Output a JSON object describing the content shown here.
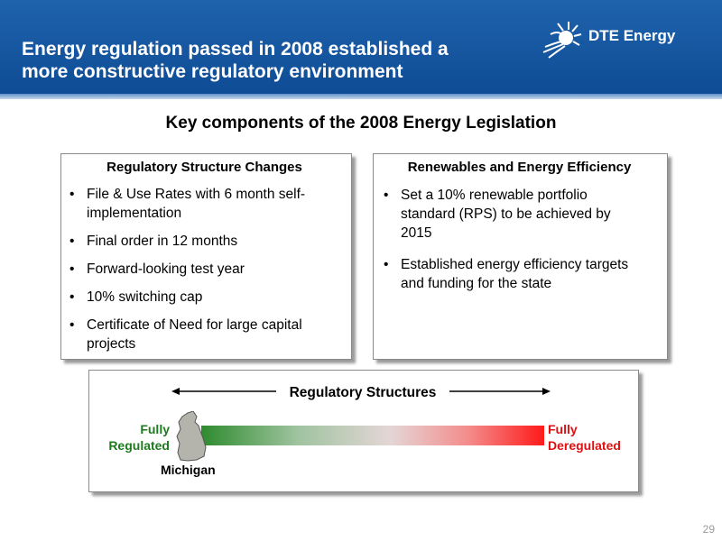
{
  "header": {
    "title_line1": "Energy regulation passed in 2008 established a",
    "title_line2": "more constructive regulatory environment",
    "logo_text": "DTE Energy"
  },
  "subtitle": "Key components of the 2008 Energy Legislation",
  "left_box": {
    "heading": "Regulatory Structure Changes",
    "items": [
      {
        "line1": "File & Use Rates with 6 month self-",
        "line2": "implementation"
      },
      {
        "line1": "Final order in 12 months",
        "line2": ""
      },
      {
        "line1": "Forward-looking test year",
        "line2": ""
      },
      {
        "line1": "10% switching cap",
        "line2": ""
      },
      {
        "line1": "Certificate of Need for large capital",
        "line2": "projects"
      }
    ]
  },
  "right_box": {
    "heading": "Renewables and Energy Efficiency",
    "items": [
      {
        "line1": "Set a 10% renewable portfolio",
        "line2": "standard (RPS) to be achieved by",
        "line3": "2015"
      },
      {
        "line1": "Established energy efficiency targets",
        "line2": "and funding for the state",
        "line3": ""
      }
    ]
  },
  "spectrum": {
    "label": "Regulatory Structures",
    "left_line1": "Fully",
    "left_line2": "Regulated",
    "right_line1": "Fully",
    "right_line2": "Deregulated",
    "state_label": "Michigan",
    "left_color": "#2e8b2e",
    "right_color": "#ff1a1a"
  },
  "page_number": "29",
  "colors": {
    "header_blue": "#1a5ba6",
    "green_text": "#1e7a1e",
    "red_text": "#e01010"
  }
}
